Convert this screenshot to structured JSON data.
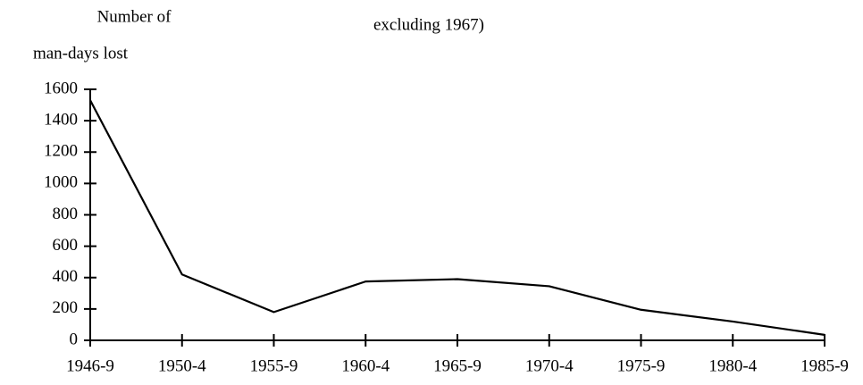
{
  "chart_data": {
    "type": "line",
    "annotation": "excluding 1967)",
    "y_label": [
      "Number of",
      "man-days lost"
    ],
    "categories": [
      "1946-9",
      "1950-4",
      "1955-9",
      "1960-4",
      "1965-9",
      "1970-4",
      "1975-9",
      "1980-4",
      "1985-9"
    ],
    "values": [
      1530,
      420,
      180,
      375,
      390,
      345,
      195,
      120,
      35
    ],
    "color": "#000000",
    "ylim": [
      0,
      1600
    ],
    "yticks": [
      0,
      200,
      400,
      600,
      800,
      1000,
      1200,
      1400,
      1600
    ]
  }
}
